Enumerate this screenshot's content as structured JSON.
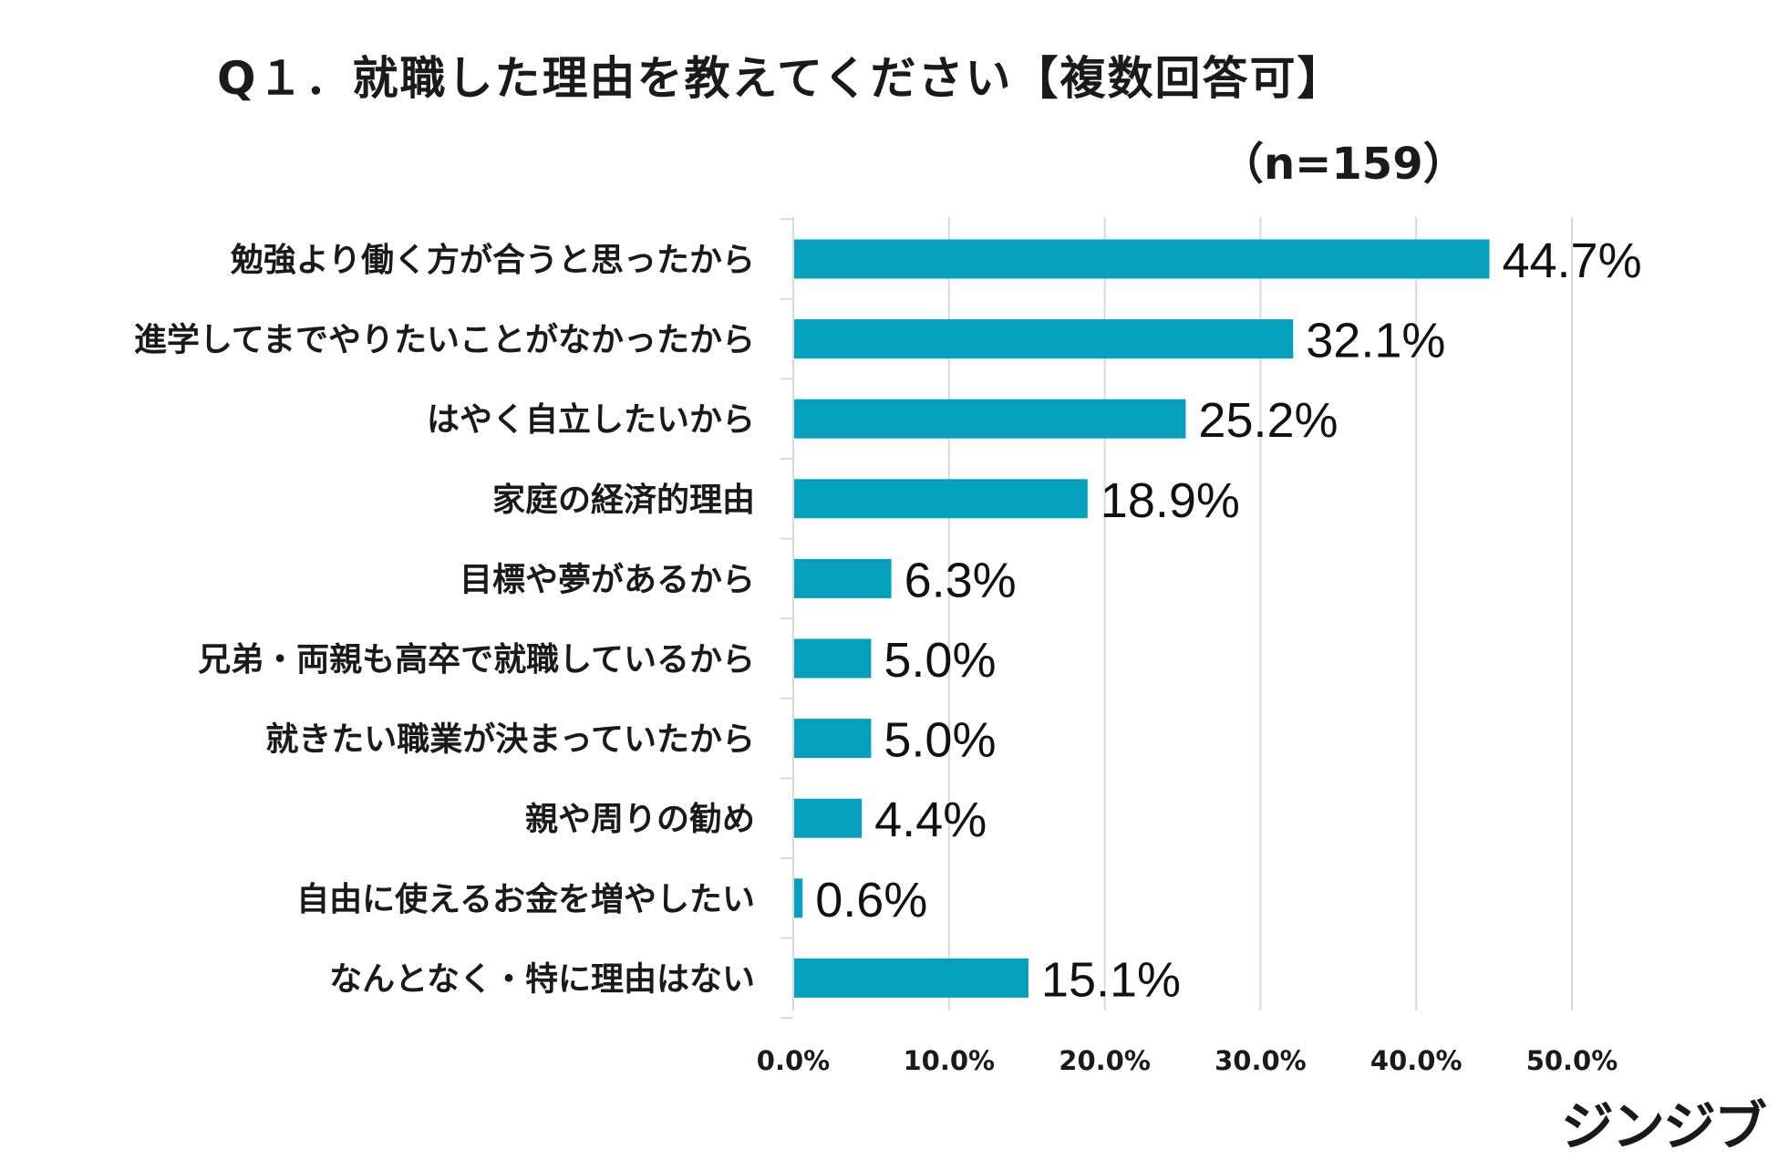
{
  "chart_data": {
    "type": "bar",
    "orientation": "horizontal",
    "title": "Q１．就職した理由を教えてください【複数回答可】",
    "sample_size_label": "（n=159）",
    "categories": [
      "勉強より働く方が合うと思ったから",
      "進学してまでやりたいことがなかったから",
      "はやく自立したいから",
      "家庭の経済的理由",
      "目標や夢があるから",
      "兄弟・両親も高卒で就職しているから",
      "就きたい職業が決まっていたから",
      "親や周りの勧め",
      "自由に使えるお金を増やしたい",
      "なんとなく・特に理由はない"
    ],
    "values": [
      44.7,
      32.1,
      25.2,
      18.9,
      6.3,
      5.0,
      5.0,
      4.4,
      0.6,
      15.1
    ],
    "value_labels": [
      "44.7%",
      "32.1%",
      "25.2%",
      "18.9%",
      "6.3%",
      "5.0%",
      "5.0%",
      "4.4%",
      "0.6%",
      "15.1%"
    ],
    "xlim": [
      0,
      50
    ],
    "xticks": [
      0,
      10,
      20,
      30,
      40,
      50
    ],
    "xtick_labels": [
      "0.0%",
      "10.0%",
      "20.0%",
      "30.0%",
      "40.0%",
      "50.0%"
    ],
    "grid": true,
    "bar_color": "#05a0be",
    "xlabel": "",
    "ylabel": ""
  },
  "brand": {
    "logo_text": "ジンジブ"
  }
}
